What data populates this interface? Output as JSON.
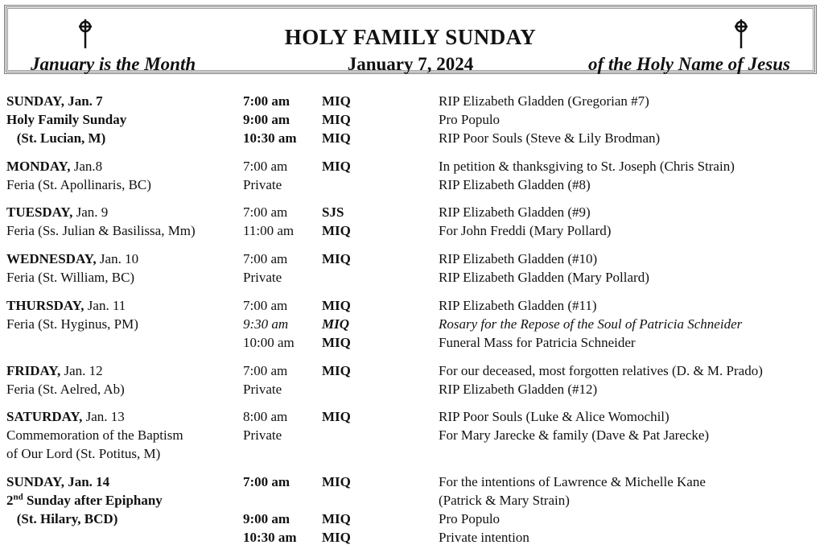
{
  "header": {
    "title": "HOLY FAMILY SUNDAY",
    "left": "January is the Month",
    "center": "January 7, 2024",
    "right": "of the Holy Name of Jesus",
    "icon": "celtic-cross-icon"
  },
  "sections": [
    {
      "rows": [
        {
          "day": "SUNDAY, Jan. 7",
          "rest": "",
          "left_bold": true,
          "time": "7:00 am",
          "time_bold": true,
          "loc": "MIQ",
          "intention": "RIP Elizabeth Gladden (Gregorian #7)"
        },
        {
          "day": "Holy Family Sunday",
          "rest": "",
          "left_bold": true,
          "time": "9:00 am",
          "time_bold": true,
          "loc": "MIQ",
          "intention": "Pro Populo"
        },
        {
          "day": "   (St. Lucian, M)",
          "rest": "",
          "left_bold": true,
          "time": "10:30 am",
          "time_bold": true,
          "loc": "MIQ",
          "intention": "RIP Poor Souls (Steve & Lily Brodman)"
        }
      ]
    },
    {
      "rows": [
        {
          "day": "MONDAY,",
          "rest": " Jan.8",
          "time": "7:00 am",
          "loc": "MIQ",
          "intention": "In petition & thanksgiving to St. Joseph (Chris Strain)"
        },
        {
          "day": "",
          "rest": "Feria (St. Apollinaris, BC)",
          "time": "Private",
          "loc": "",
          "intention": "RIP Elizabeth Gladden (#8)"
        }
      ]
    },
    {
      "rows": [
        {
          "day": "TUESDAY,",
          "rest": " Jan. 9",
          "time": "7:00 am",
          "loc": "SJS",
          "intention": "RIP Elizabeth Gladden (#9)"
        },
        {
          "day": "",
          "rest": "Feria (Ss. Julian & Basilissa, Mm)",
          "time": "11:00 am",
          "loc": "MIQ",
          "intention": "For John Freddi (Mary Pollard)"
        }
      ]
    },
    {
      "rows": [
        {
          "day": "WEDNESDAY,",
          "rest": " Jan. 10",
          "time": "7:00 am",
          "loc": "MIQ",
          "intention": "RIP Elizabeth Gladden (#10)"
        },
        {
          "day": "",
          "rest": "Feria (St. William, BC)",
          "time": "Private",
          "loc": "",
          "intention": "RIP Elizabeth Gladden (Mary Pollard)"
        }
      ]
    },
    {
      "rows": [
        {
          "day": "THURSDAY,",
          "rest": " Jan. 11",
          "time": "7:00 am",
          "loc": "MIQ",
          "intention": "RIP Elizabeth Gladden (#11)"
        },
        {
          "day": "",
          "rest": "Feria (St. Hyginus, PM)",
          "time": "9:30 am",
          "loc": "MIQ",
          "intention": "Rosary for the Repose of the Soul of Patricia Schneider",
          "italic": true
        },
        {
          "day": "",
          "rest": "",
          "time": "10:00 am",
          "loc": "MIQ",
          "intention": "Funeral Mass for Patricia Schneider"
        }
      ]
    },
    {
      "rows": [
        {
          "day": "FRIDAY,",
          "rest": " Jan. 12",
          "time": "7:00 am",
          "loc": "MIQ",
          "intention": "For our deceased, most forgotten relatives (D. & M. Prado)"
        },
        {
          "day": "",
          "rest": "Feria (St. Aelred, Ab)",
          "time": "Private",
          "loc": "",
          "intention": "RIP Elizabeth Gladden (#12)"
        }
      ]
    },
    {
      "rows": [
        {
          "day": "SATURDAY,",
          "rest": " Jan. 13",
          "time": "8:00 am",
          "loc": "MIQ",
          "intention": "RIP Poor Souls (Luke & Alice Womochil)"
        },
        {
          "day": "",
          "rest": "Commemoration of the Baptism",
          "time": "Private",
          "loc": "",
          "intention": "For Mary Jarecke & family (Dave & Pat Jarecke)"
        },
        {
          "day": "",
          "rest": "    of Our Lord (St. Potitus, M)",
          "time": "",
          "loc": "",
          "intention": ""
        }
      ]
    },
    {
      "rows": [
        {
          "day": "SUNDAY, Jan. 14",
          "rest": "",
          "left_bold": true,
          "time": "7:00 am",
          "time_bold": true,
          "loc": "MIQ",
          "intention": "For the intentions of Lawrence & Michelle Kane"
        },
        {
          "day": "2",
          "sup": "nd",
          "after": " Sunday after Epiphany",
          "rest": "",
          "left_bold": true,
          "time": "",
          "loc": "",
          "intention": "(Patrick & Mary Strain)"
        },
        {
          "day": "   (St. Hilary, BCD)",
          "rest": "",
          "left_bold": true,
          "time": "9:00 am",
          "time_bold": true,
          "loc": "MIQ",
          "intention": "Pro Populo"
        },
        {
          "day": "",
          "rest": "",
          "time": "10:30 am",
          "time_bold": true,
          "loc": "MIQ",
          "intention": "Private intention"
        }
      ]
    }
  ]
}
